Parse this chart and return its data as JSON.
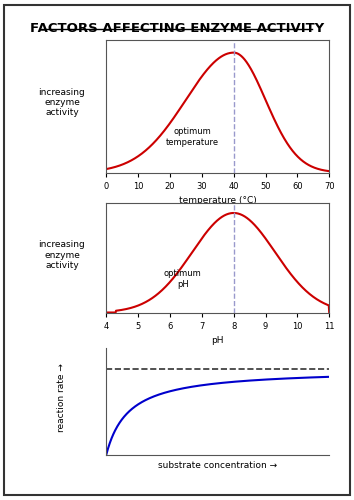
{
  "title": "FACTORS AFFECTING ENZYME ACTIVITY",
  "bg_color": "#ffffff",
  "border_color": "#333333",
  "temp_xlabel": "temperature (°C)",
  "temp_ylabel": "increasing\nenzyme\nactivity",
  "temp_xlim": [
    0,
    70
  ],
  "temp_xticks": [
    0,
    10,
    20,
    30,
    40,
    50,
    60,
    70
  ],
  "temp_optimum": 40,
  "temp_annotation": "optimum\ntemperature",
  "ph_xlabel": "pH",
  "ph_ylabel": "increasing\nenzyme\nactivity",
  "ph_xlim": [
    4,
    11
  ],
  "ph_xticks": [
    4,
    5,
    6,
    7,
    8,
    9,
    10,
    11
  ],
  "ph_optimum": 8,
  "ph_annotation": "optimum\npH",
  "conc_xlabel": "substrate concentration →",
  "conc_ylabel": "reaction rate →",
  "curve_color": "#cc0000",
  "vline_color": "#9999cc",
  "conc_curve_color": "#0000cc",
  "dashed_color": "#333333",
  "font_size_title": 9.5,
  "font_size_axis": 6.5,
  "font_size_annotation": 6.0,
  "font_size_tick": 6.0
}
